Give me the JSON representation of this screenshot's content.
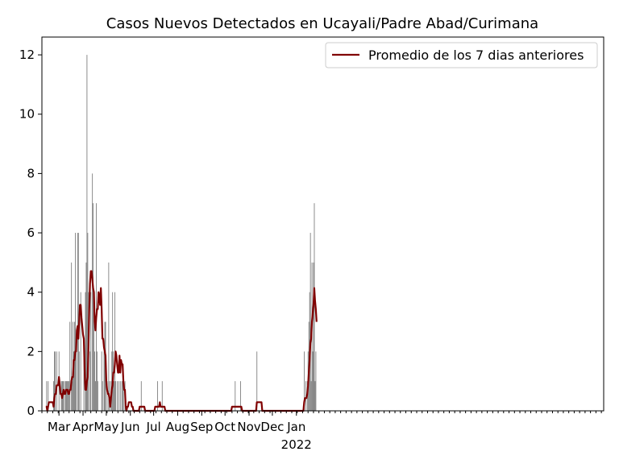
{
  "chart_data": {
    "type": "bar",
    "title": "Casos Nuevos Detectados en Ucayali/Padre Abad/Curimana",
    "xlabel": "",
    "ylabel": "",
    "ylim": [
      0,
      12.6
    ],
    "yticks": [
      0,
      2,
      4,
      6,
      8,
      10,
      12
    ],
    "x_range": [
      "2020-02-08",
      "2022-02-01"
    ],
    "xticks": [
      {
        "date": "2020-03-01",
        "label": "Mar",
        "sublabel": ""
      },
      {
        "date": "2020-04-01",
        "label": "Apr",
        "sublabel": ""
      },
      {
        "date": "2020-05-01",
        "label": "May",
        "sublabel": ""
      },
      {
        "date": "2020-06-01",
        "label": "Jun",
        "sublabel": ""
      },
      {
        "date": "2020-07-01",
        "label": "Jul",
        "sublabel": ""
      },
      {
        "date": "2020-08-01",
        "label": "Aug",
        "sublabel": ""
      },
      {
        "date": "2020-09-01",
        "label": "Sep",
        "sublabel": ""
      },
      {
        "date": "2020-10-01",
        "label": "Oct",
        "sublabel": ""
      },
      {
        "date": "2020-11-01",
        "label": "Nov",
        "sublabel": ""
      },
      {
        "date": "2020-12-01",
        "label": "Dec",
        "sublabel": ""
      },
      {
        "date": "2021-01-01",
        "label": "Jan",
        "sublabel": "2022"
      }
    ],
    "grid": false,
    "legend_position": "upper-right",
    "bar_color": "#808080",
    "line_color": "#800000",
    "series": [
      {
        "kind": "bar",
        "points": [
          [
            "2020-02-14",
            1
          ],
          [
            "2020-02-16",
            1
          ],
          [
            "2020-02-23",
            1
          ],
          [
            "2020-02-24",
            2
          ],
          [
            "2020-02-25",
            2
          ],
          [
            "2020-02-27",
            2
          ],
          [
            "2020-03-01",
            2
          ],
          [
            "2020-03-04",
            1
          ],
          [
            "2020-03-05",
            1
          ],
          [
            "2020-03-06",
            1
          ],
          [
            "2020-03-07",
            1
          ],
          [
            "2020-03-09",
            1
          ],
          [
            "2020-03-10",
            1
          ],
          [
            "2020-03-11",
            1
          ],
          [
            "2020-03-12",
            1
          ],
          [
            "2020-03-13",
            1
          ],
          [
            "2020-03-14",
            1
          ],
          [
            "2020-03-15",
            3
          ],
          [
            "2020-03-17",
            5
          ],
          [
            "2020-03-18",
            1
          ],
          [
            "2020-03-19",
            3
          ],
          [
            "2020-03-20",
            2
          ],
          [
            "2020-03-21",
            3
          ],
          [
            "2020-03-22",
            6
          ],
          [
            "2020-03-23",
            2
          ],
          [
            "2020-03-25",
            6
          ],
          [
            "2020-03-26",
            6
          ],
          [
            "2020-03-27",
            2
          ],
          [
            "2020-03-29",
            4
          ],
          [
            "2020-04-02",
            2
          ],
          [
            "2020-04-04",
            4
          ],
          [
            "2020-04-05",
            5
          ],
          [
            "2020-04-06",
            12
          ],
          [
            "2020-04-07",
            6
          ],
          [
            "2020-04-08",
            4
          ],
          [
            "2020-04-10",
            2
          ],
          [
            "2020-04-11",
            4
          ],
          [
            "2020-04-13",
            8
          ],
          [
            "2020-04-14",
            7
          ],
          [
            "2020-04-15",
            4
          ],
          [
            "2020-04-16",
            2
          ],
          [
            "2020-04-17",
            1
          ],
          [
            "2020-04-18",
            7
          ],
          [
            "2020-04-19",
            2
          ],
          [
            "2020-04-20",
            1
          ],
          [
            "2020-04-25",
            2
          ],
          [
            "2020-04-26",
            1
          ],
          [
            "2020-04-28",
            2
          ],
          [
            "2020-04-29",
            3
          ],
          [
            "2020-04-30",
            3
          ],
          [
            "2020-05-02",
            1
          ],
          [
            "2020-05-04",
            5
          ],
          [
            "2020-05-05",
            1
          ],
          [
            "2020-05-07",
            1
          ],
          [
            "2020-05-08",
            2
          ],
          [
            "2020-05-09",
            4
          ],
          [
            "2020-05-10",
            2
          ],
          [
            "2020-05-11",
            1
          ],
          [
            "2020-05-12",
            4
          ],
          [
            "2020-05-13",
            1
          ],
          [
            "2020-05-15",
            1
          ],
          [
            "2020-05-17",
            1
          ],
          [
            "2020-05-19",
            1
          ],
          [
            "2020-05-21",
            1
          ],
          [
            "2020-05-22",
            1
          ],
          [
            "2020-05-23",
            1
          ],
          [
            "2020-05-25",
            1
          ],
          [
            "2020-06-15",
            1
          ],
          [
            "2020-07-06",
            1
          ],
          [
            "2020-07-12",
            1
          ],
          [
            "2020-10-14",
            1
          ],
          [
            "2020-10-21",
            1
          ],
          [
            "2020-11-11",
            2
          ],
          [
            "2021-01-11",
            2
          ],
          [
            "2021-01-13",
            1
          ],
          [
            "2021-01-15",
            1
          ],
          [
            "2021-01-16",
            2
          ],
          [
            "2021-01-17",
            3
          ],
          [
            "2021-01-18",
            4
          ],
          [
            "2021-01-19",
            6
          ],
          [
            "2021-01-20",
            1
          ],
          [
            "2021-01-21",
            5
          ],
          [
            "2021-01-22",
            2
          ],
          [
            "2021-01-23",
            5
          ],
          [
            "2021-01-24",
            7
          ],
          [
            "2021-01-25",
            1
          ],
          [
            "2021-01-26",
            2
          ]
        ]
      },
      {
        "kind": "line",
        "name": "Promedio de los 7 dias anteriores",
        "points": [
          [
            "2020-02-13",
            0.14
          ],
          [
            "2020-02-14",
            0.14
          ],
          [
            "2020-02-15",
            0.0
          ],
          [
            "2020-02-16",
            0.14
          ],
          [
            "2020-02-17",
            0.29
          ],
          [
            "2020-02-20",
            0.29
          ],
          [
            "2020-02-22",
            0.29
          ],
          [
            "2020-02-23",
            0.14
          ],
          [
            "2020-02-24",
            0.43
          ],
          [
            "2020-02-25",
            0.57
          ],
          [
            "2020-02-26",
            0.57
          ],
          [
            "2020-02-27",
            0.86
          ],
          [
            "2020-02-28",
            0.86
          ],
          [
            "2020-02-29",
            0.86
          ],
          [
            "2020-03-01",
            1.14
          ],
          [
            "2020-03-02",
            0.86
          ],
          [
            "2020-03-03",
            0.57
          ],
          [
            "2020-03-04",
            0.57
          ],
          [
            "2020-03-05",
            0.43
          ],
          [
            "2020-03-06",
            0.57
          ],
          [
            "2020-03-07",
            0.71
          ],
          [
            "2020-03-08",
            0.57
          ],
          [
            "2020-03-09",
            0.57
          ],
          [
            "2020-03-10",
            0.71
          ],
          [
            "2020-03-11",
            0.71
          ],
          [
            "2020-03-12",
            0.71
          ],
          [
            "2020-03-13",
            0.57
          ],
          [
            "2020-03-14",
            0.57
          ],
          [
            "2020-03-15",
            0.71
          ],
          [
            "2020-03-16",
            0.71
          ],
          [
            "2020-03-17",
            1.0
          ],
          [
            "2020-03-18",
            1.14
          ],
          [
            "2020-03-19",
            1.14
          ],
          [
            "2020-03-20",
            1.71
          ],
          [
            "2020-03-21",
            1.71
          ],
          [
            "2020-03-22",
            2.0
          ],
          [
            "2020-03-23",
            2.0
          ],
          [
            "2020-03-24",
            2.71
          ],
          [
            "2020-03-25",
            2.86
          ],
          [
            "2020-03-26",
            2.43
          ],
          [
            "2020-03-27",
            3.0
          ],
          [
            "2020-03-28",
            3.57
          ],
          [
            "2020-03-29",
            3.57
          ],
          [
            "2020-03-30",
            3.14
          ],
          [
            "2020-03-31",
            2.86
          ],
          [
            "2020-04-01",
            2.57
          ],
          [
            "2020-04-02",
            2.43
          ],
          [
            "2020-04-03",
            1.43
          ],
          [
            "2020-04-04",
            0.71
          ],
          [
            "2020-04-05",
            0.71
          ],
          [
            "2020-04-06",
            1.0
          ],
          [
            "2020-04-07",
            1.14
          ],
          [
            "2020-04-08",
            2.14
          ],
          [
            "2020-04-09",
            3.43
          ],
          [
            "2020-04-10",
            4.29
          ],
          [
            "2020-04-11",
            4.71
          ],
          [
            "2020-04-12",
            4.71
          ],
          [
            "2020-04-13",
            4.43
          ],
          [
            "2020-04-14",
            4.14
          ],
          [
            "2020-04-15",
            4.0
          ],
          [
            "2020-04-16",
            3.0
          ],
          [
            "2020-04-17",
            2.71
          ],
          [
            "2020-04-18",
            3.14
          ],
          [
            "2020-04-19",
            3.43
          ],
          [
            "2020-04-20",
            3.43
          ],
          [
            "2020-04-21",
            4.0
          ],
          [
            "2020-04-22",
            3.86
          ],
          [
            "2020-04-23",
            3.57
          ],
          [
            "2020-04-24",
            4.14
          ],
          [
            "2020-04-25",
            3.43
          ],
          [
            "2020-04-26",
            2.43
          ],
          [
            "2020-04-27",
            2.43
          ],
          [
            "2020-04-28",
            2.14
          ],
          [
            "2020-04-29",
            2.0
          ],
          [
            "2020-04-30",
            1.86
          ],
          [
            "2020-05-01",
            1.0
          ],
          [
            "2020-05-02",
            0.71
          ],
          [
            "2020-05-03",
            0.57
          ],
          [
            "2020-05-04",
            0.57
          ],
          [
            "2020-05-05",
            0.43
          ],
          [
            "2020-05-06",
            0.14
          ],
          [
            "2020-05-07",
            0.43
          ],
          [
            "2020-05-08",
            0.71
          ],
          [
            "2020-05-09",
            0.86
          ],
          [
            "2020-05-10",
            1.29
          ],
          [
            "2020-05-11",
            1.29
          ],
          [
            "2020-05-12",
            1.57
          ],
          [
            "2020-05-13",
            2.0
          ],
          [
            "2020-05-14",
            1.86
          ],
          [
            "2020-05-15",
            1.57
          ],
          [
            "2020-05-16",
            1.29
          ],
          [
            "2020-05-17",
            1.29
          ],
          [
            "2020-05-18",
            1.86
          ],
          [
            "2020-05-19",
            1.29
          ],
          [
            "2020-05-20",
            1.71
          ],
          [
            "2020-05-21",
            1.57
          ],
          [
            "2020-05-22",
            1.57
          ],
          [
            "2020-05-23",
            1.0
          ],
          [
            "2020-05-24",
            0.71
          ],
          [
            "2020-05-25",
            0.71
          ],
          [
            "2020-05-26",
            0.14
          ],
          [
            "2020-05-27",
            0.0
          ],
          [
            "2020-05-28",
            0.14
          ],
          [
            "2020-05-29",
            0.14
          ],
          [
            "2020-05-30",
            0.29
          ],
          [
            "2020-06-02",
            0.29
          ],
          [
            "2020-06-03",
            0.14
          ],
          [
            "2020-06-04",
            0.14
          ],
          [
            "2020-06-05",
            0.0
          ],
          [
            "2020-06-12",
            0.0
          ],
          [
            "2020-06-13",
            0.14
          ],
          [
            "2020-06-19",
            0.14
          ],
          [
            "2020-06-20",
            0.0
          ],
          [
            "2020-07-02",
            0.0
          ],
          [
            "2020-07-03",
            0.14
          ],
          [
            "2020-07-08",
            0.14
          ],
          [
            "2020-07-09",
            0.29
          ],
          [
            "2020-07-10",
            0.14
          ],
          [
            "2020-07-15",
            0.14
          ],
          [
            "2020-07-16",
            0.0
          ],
          [
            "2020-10-09",
            0.0
          ],
          [
            "2020-10-10",
            0.14
          ],
          [
            "2020-10-22",
            0.14
          ],
          [
            "2020-10-23",
            0.0
          ],
          [
            "2020-11-10",
            0.0
          ],
          [
            "2020-11-11",
            0.29
          ],
          [
            "2020-11-17",
            0.29
          ],
          [
            "2020-11-18",
            0.0
          ],
          [
            "2021-01-10",
            0.0
          ],
          [
            "2021-01-11",
            0.29
          ],
          [
            "2021-01-12",
            0.43
          ],
          [
            "2021-01-13",
            0.43
          ],
          [
            "2021-01-14",
            0.43
          ],
          [
            "2021-01-15",
            0.57
          ],
          [
            "2021-01-16",
            0.86
          ],
          [
            "2021-01-17",
            1.29
          ],
          [
            "2021-01-18",
            1.71
          ],
          [
            "2021-01-19",
            2.29
          ],
          [
            "2021-01-20",
            2.43
          ],
          [
            "2021-01-21",
            3.0
          ],
          [
            "2021-01-22",
            3.29
          ],
          [
            "2021-01-23",
            3.57
          ],
          [
            "2021-01-24",
            4.14
          ],
          [
            "2021-01-25",
            3.71
          ],
          [
            "2021-01-26",
            3.43
          ],
          [
            "2021-01-27",
            3.0
          ]
        ]
      }
    ]
  }
}
